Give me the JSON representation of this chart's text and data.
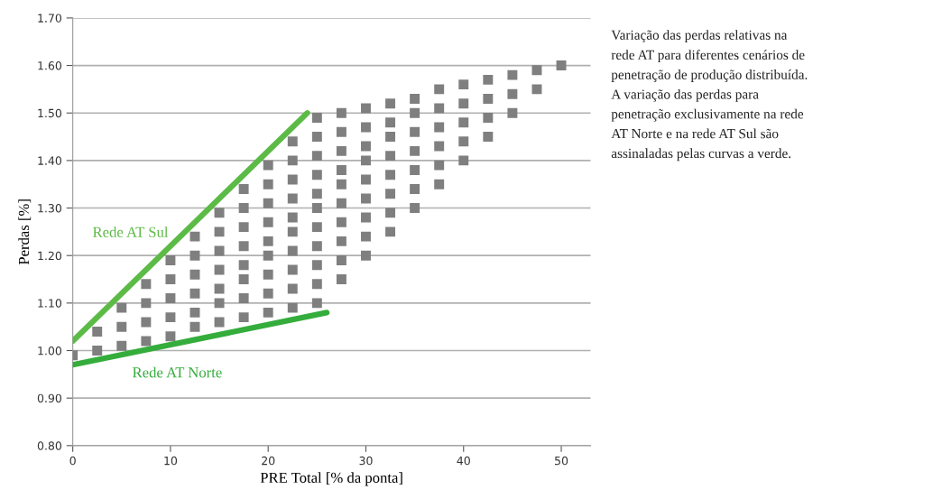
{
  "chart_data": {
    "type": "scatter",
    "xlabel": "PRE Total [% da ponta]",
    "ylabel": "Perdas [%]",
    "xlim": [
      0,
      53
    ],
    "xticks": [
      0,
      10,
      20,
      30,
      40,
      50
    ],
    "ylim": [
      0.8,
      1.7
    ],
    "yticks": [
      {
        "value": 0.8,
        "label": "0.80"
      },
      {
        "value": 0.9,
        "label": "0.90"
      },
      {
        "value": 1.0,
        "label": "1.00"
      },
      {
        "value": 1.1,
        "label": "1.10"
      },
      {
        "value": 1.2,
        "label": "1.20"
      },
      {
        "value": 1.3,
        "label": "1.30"
      },
      {
        "value": 1.4,
        "label": "1.40"
      },
      {
        "value": 1.5,
        "label": "1.50"
      },
      {
        "value": 1.6,
        "label": "1.60"
      },
      {
        "value": 1.7,
        "label": "1.70"
      }
    ],
    "grid": "y",
    "legend": false,
    "series": [
      {
        "marker": "square",
        "color": "#7f7f7f",
        "x": [
          0,
          2.5,
          2.5,
          5,
          5,
          5,
          7.5,
          7.5,
          7.5,
          7.5,
          10,
          10,
          10,
          10,
          10,
          12.5,
          12.5,
          12.5,
          12.5,
          12.5,
          12.5,
          15,
          15,
          15,
          15,
          15,
          15,
          15,
          17.5,
          17.5,
          17.5,
          17.5,
          17.5,
          17.5,
          17.5,
          17.5,
          20,
          20,
          20,
          20,
          20,
          20,
          20,
          20,
          20,
          22.5,
          22.5,
          22.5,
          22.5,
          22.5,
          22.5,
          22.5,
          22.5,
          22.5,
          22.5,
          25,
          25,
          25,
          25,
          25,
          25,
          25,
          25,
          25,
          25,
          25,
          27.5,
          27.5,
          27.5,
          27.5,
          27.5,
          27.5,
          27.5,
          27.5,
          27.5,
          27.5,
          30,
          30,
          30,
          30,
          30,
          30,
          30,
          30,
          30,
          32.5,
          32.5,
          32.5,
          32.5,
          32.5,
          32.5,
          32.5,
          32.5,
          35,
          35,
          35,
          35,
          35,
          35,
          35,
          37.5,
          37.5,
          37.5,
          37.5,
          37.5,
          37.5,
          40,
          40,
          40,
          40,
          40,
          42.5,
          42.5,
          42.5,
          42.5,
          45,
          45,
          45,
          47.5,
          47.5,
          50
        ],
        "values": [
          0.99,
          1.0,
          1.04,
          1.01,
          1.05,
          1.09,
          1.02,
          1.06,
          1.1,
          1.14,
          1.03,
          1.07,
          1.11,
          1.15,
          1.19,
          1.05,
          1.08,
          1.12,
          1.16,
          1.2,
          1.24,
          1.06,
          1.1,
          1.13,
          1.17,
          1.21,
          1.25,
          1.29,
          1.07,
          1.11,
          1.15,
          1.18,
          1.22,
          1.26,
          1.3,
          1.34,
          1.08,
          1.12,
          1.16,
          1.2,
          1.23,
          1.27,
          1.31,
          1.35,
          1.39,
          1.09,
          1.13,
          1.17,
          1.21,
          1.25,
          1.28,
          1.32,
          1.36,
          1.4,
          1.44,
          1.1,
          1.14,
          1.18,
          1.22,
          1.26,
          1.3,
          1.33,
          1.37,
          1.41,
          1.45,
          1.49,
          1.15,
          1.19,
          1.23,
          1.27,
          1.31,
          1.35,
          1.38,
          1.42,
          1.46,
          1.5,
          1.2,
          1.24,
          1.28,
          1.32,
          1.36,
          1.4,
          1.43,
          1.47,
          1.51,
          1.25,
          1.29,
          1.33,
          1.37,
          1.41,
          1.45,
          1.48,
          1.52,
          1.3,
          1.34,
          1.38,
          1.42,
          1.46,
          1.5,
          1.53,
          1.35,
          1.39,
          1.43,
          1.47,
          1.51,
          1.55,
          1.4,
          1.44,
          1.48,
          1.52,
          1.56,
          1.45,
          1.49,
          1.53,
          1.57,
          1.5,
          1.54,
          1.58,
          1.55,
          1.59,
          1.6
        ]
      },
      {
        "type": "line",
        "name": "Rede AT Sul",
        "color": "#5cbb46",
        "x": [
          0,
          24
        ],
        "values": [
          1.02,
          1.5
        ]
      },
      {
        "type": "line",
        "name": "Rede AT Norte",
        "color": "#35ad3c",
        "x": [
          0,
          26
        ],
        "values": [
          0.97,
          1.08
        ]
      }
    ],
    "annotations": [
      "Variação das perdas relativas na\nrede AT para diferentes cenários de\npenetração de produção distribuída.\nA variação das perdas para\npenetração exclusivamente na rede\nAT Norte e na rede AT Sul são\nassinaladas pelas curvas a verde."
    ]
  }
}
